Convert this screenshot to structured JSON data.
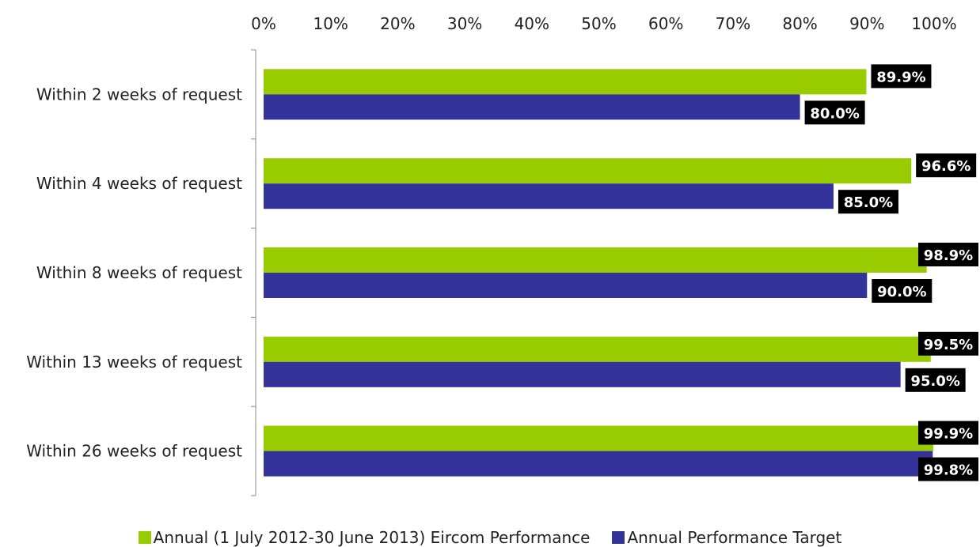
{
  "chart_data": {
    "type": "bar",
    "orientation": "horizontal",
    "categories": [
      "Within 2 weeks of request",
      "Within 4 weeks of request",
      "Within 8 weeks of request",
      "Within 13 weeks of request",
      "Within 26 weeks of request"
    ],
    "series": [
      {
        "name": "Annual (1 July 2012-30 June 2013) Eircom Performance",
        "color": "#99cc00",
        "values": [
          89.9,
          96.6,
          98.9,
          99.5,
          99.9
        ],
        "labels": [
          "89.9%",
          "96.6%",
          "98.9%",
          "99.5%",
          "99.9%"
        ]
      },
      {
        "name": "Annual Performance Target",
        "color": "#333399",
        "values": [
          80.0,
          85.0,
          90.0,
          95.0,
          99.8
        ],
        "labels": [
          "80.0%",
          "85.0%",
          "90.0%",
          "95.0%",
          "99.8%"
        ]
      }
    ],
    "xlim": [
      0,
      100
    ],
    "xticks": [
      "0%",
      "10%",
      "20%",
      "30%",
      "40%",
      "50%",
      "60%",
      "70%",
      "80%",
      "90%",
      "100%"
    ],
    "xaxis_position": "top",
    "grid": false,
    "legend_position": "bottom"
  }
}
